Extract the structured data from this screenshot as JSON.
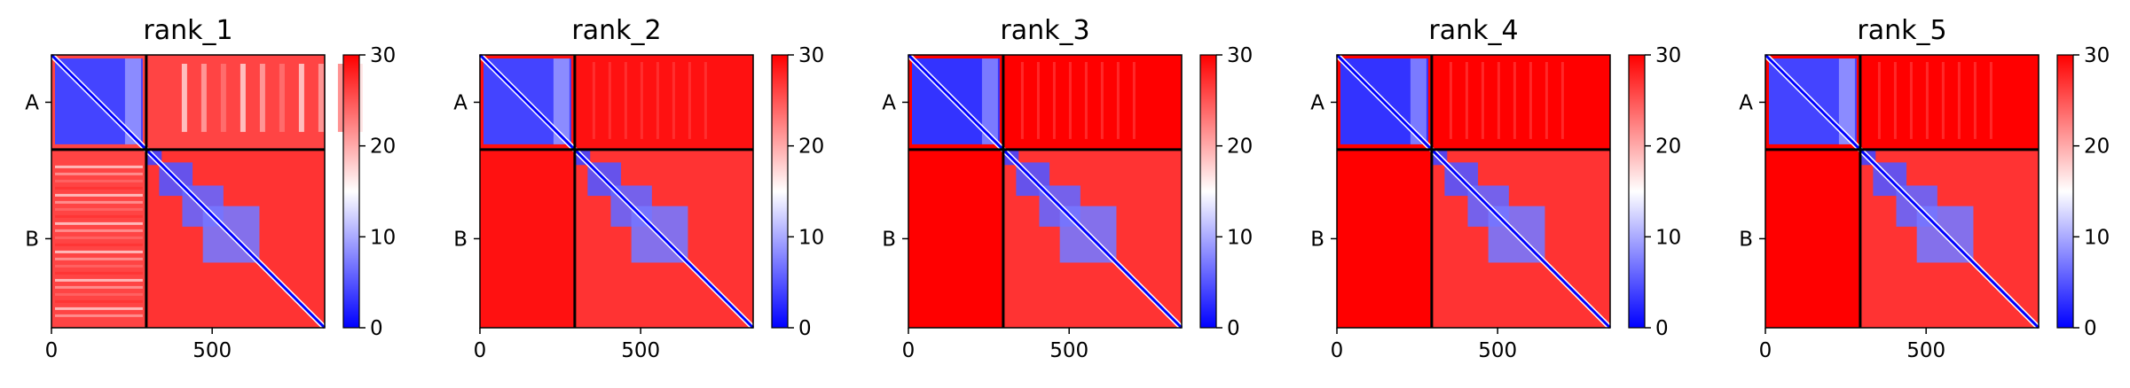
{
  "chart_data": {
    "type": "heatmap",
    "colormap": "bwr",
    "color_range": [
      0,
      30
    ],
    "colorbar_ticks": [
      "0",
      "10",
      "20",
      "30"
    ],
    "x_ticks": [
      "0",
      "500"
    ],
    "x_tick_values": [
      0,
      500
    ],
    "x_range": [
      0,
      850
    ],
    "y_ticks": [
      "A",
      "B"
    ],
    "chain_boundary": 295,
    "chain_lengths": {
      "A": 295,
      "B": 555
    },
    "panels": [
      {
        "title": "rank_1",
        "inter_chain_error": 26,
        "chain_a_error": 4,
        "chain_b_error": 27
      },
      {
        "title": "rank_2",
        "inter_chain_error": 29,
        "chain_a_error": 4,
        "chain_b_error": 27
      },
      {
        "title": "rank_3",
        "inter_chain_error": 30,
        "chain_a_error": 3,
        "chain_b_error": 27
      },
      {
        "title": "rank_4",
        "inter_chain_error": 30,
        "chain_a_error": 3,
        "chain_b_error": 27
      },
      {
        "title": "rank_5",
        "inter_chain_error": 30,
        "chain_a_error": 4,
        "chain_b_error": 27
      }
    ]
  }
}
